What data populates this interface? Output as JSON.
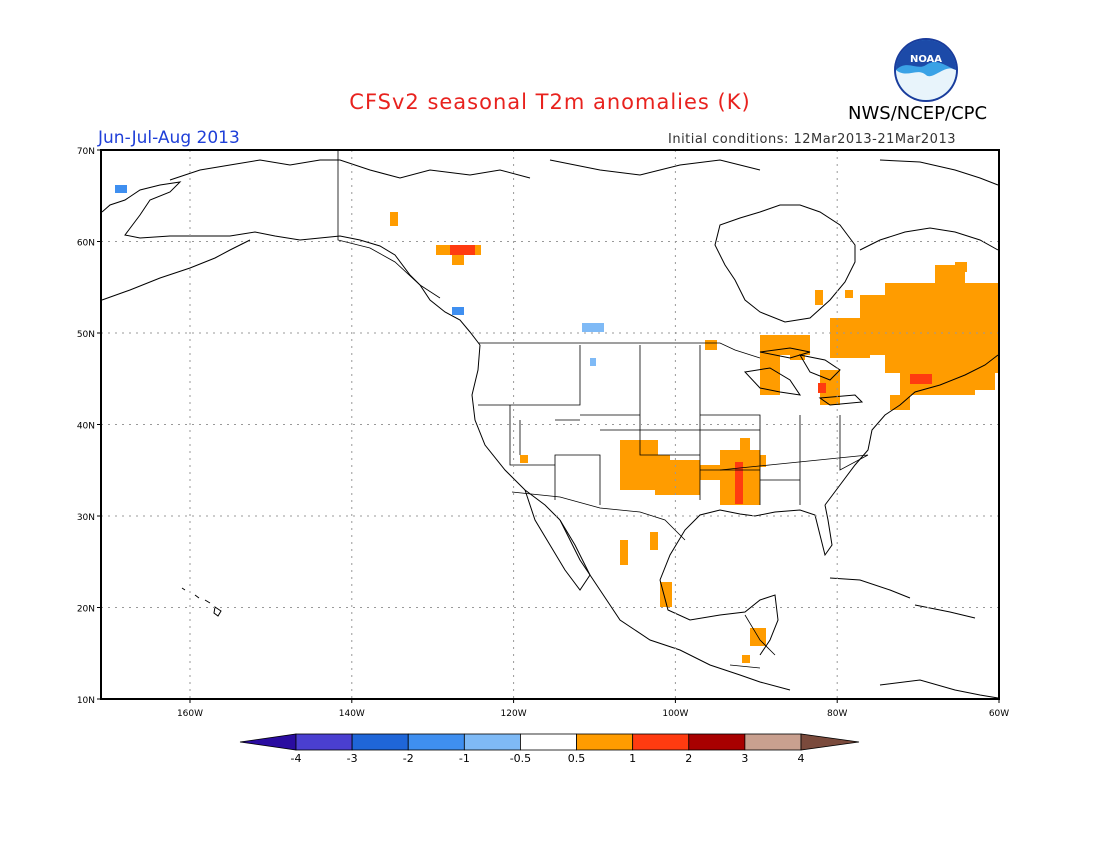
{
  "header": {
    "title": "CFSv2 seasonal T2m anomalies (K)",
    "period": "Jun-Jul-Aug 2013",
    "agency": "NWS/NCEP/CPC",
    "initial_conditions": "Initial conditions: 12Mar2013-21Mar2013",
    "logo_text": "NOAA"
  },
  "axes": {
    "lat_labels": [
      "70N",
      "60N",
      "50N",
      "40N",
      "30N",
      "20N",
      "10N"
    ],
    "lon_labels": [
      "160W",
      "140W",
      "120W",
      "100W",
      "80W",
      "60W"
    ]
  },
  "legend": {
    "labels": [
      "-4",
      "-3",
      "-2",
      "-1",
      "-0.5",
      "0.5",
      "1",
      "2",
      "3",
      "4"
    ],
    "colors": [
      "#2a0ca0",
      "#4a3fd0",
      "#1f66d8",
      "#3f8ff0",
      "#7fbaf6",
      "#ffffff",
      "#ff9c00",
      "#ff3b10",
      "#a80000",
      "#c9a08f",
      "#7a4a3c"
    ]
  },
  "colors": {
    "title": "#e8221e",
    "period": "#1f3fd8",
    "warm_weak": "#ff9c00",
    "warm_mid": "#ff3b10",
    "cool_weak": "#7fbaf6",
    "cool_mid": "#3f8ff0"
  }
}
